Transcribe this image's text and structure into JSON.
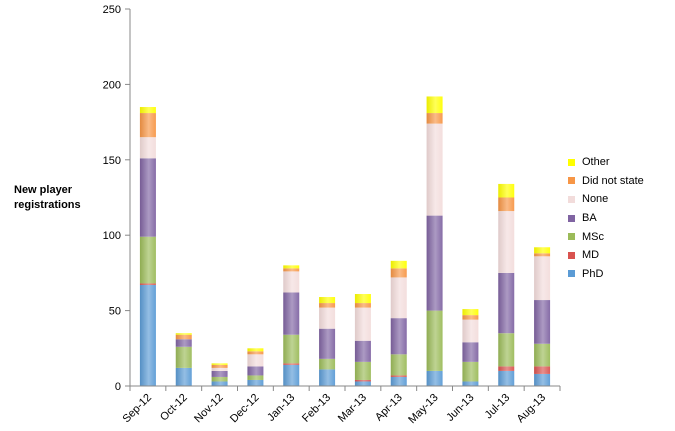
{
  "chart_data": {
    "type": "bar",
    "stacked": true,
    "title": "",
    "xlabel": "",
    "ylabel": "New player registrations",
    "ylabel_lines": [
      "New player",
      "registrations"
    ],
    "ylim": [
      0,
      250
    ],
    "yticks": [
      0,
      50,
      100,
      150,
      200,
      250
    ],
    "grid": false,
    "legend_position": "right",
    "categories": [
      "Sep-12",
      "Oct-12",
      "Nov-12",
      "Dec-12",
      "Jan-13",
      "Feb-13",
      "Mar-13",
      "Apr-13",
      "May-13",
      "Jun-13",
      "Jul-13",
      "Aug-13"
    ],
    "series": [
      {
        "name": "PhD",
        "color": "#5b9bd5",
        "values": [
          67,
          12,
          3,
          4,
          14,
          11,
          3,
          6,
          10,
          3,
          10,
          8
        ]
      },
      {
        "name": "MD",
        "color": "#d9534f",
        "values": [
          1,
          0,
          0,
          0,
          1,
          0,
          1,
          1,
          0,
          0,
          3,
          5
        ]
      },
      {
        "name": "MSc",
        "color": "#9bbb59",
        "values": [
          31,
          14,
          3,
          3,
          19,
          7,
          12,
          14,
          40,
          13,
          22,
          15
        ]
      },
      {
        "name": "BA",
        "color": "#8064a2",
        "values": [
          52,
          5,
          4,
          6,
          28,
          20,
          14,
          24,
          63,
          13,
          40,
          29
        ]
      },
      {
        "name": "None",
        "color": "#f2dcdb",
        "values": [
          14,
          0,
          2,
          8,
          14,
          14,
          22,
          27,
          61,
          15,
          41,
          29
        ]
      },
      {
        "name": "Did not state",
        "color": "#f79646",
        "values": [
          16,
          3,
          2,
          2,
          2,
          3,
          3,
          6,
          7,
          3,
          9,
          2
        ]
      },
      {
        "name": "Other",
        "color": "#ffff00",
        "values": [
          4,
          1,
          1,
          2,
          2,
          4,
          6,
          5,
          11,
          4,
          9,
          4
        ]
      }
    ]
  }
}
